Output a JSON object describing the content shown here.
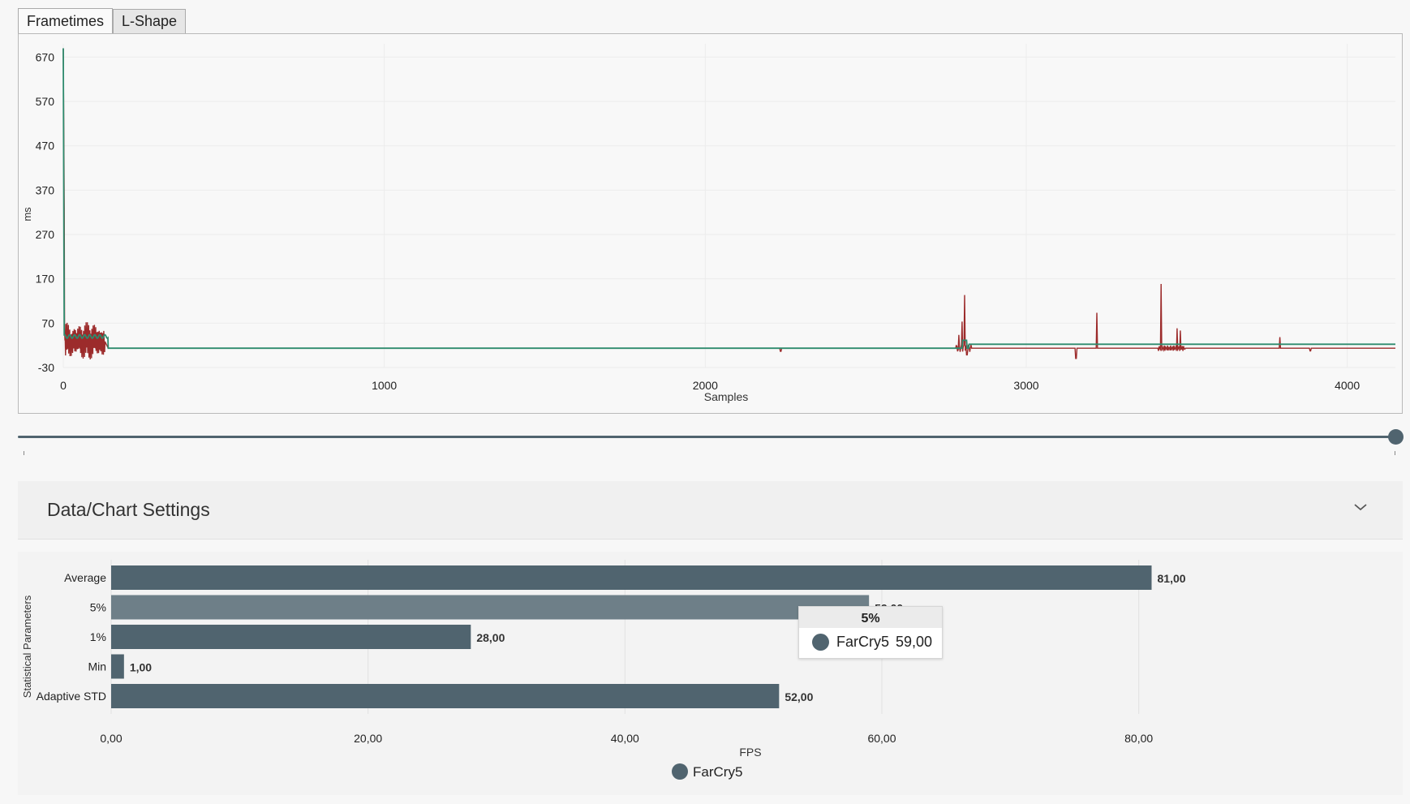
{
  "tabs": [
    {
      "label": "Frametimes",
      "active": true
    },
    {
      "label": "L-Shape",
      "active": false
    }
  ],
  "frametimes_chart": {
    "ylabel": "ms",
    "xlabel": "Samples",
    "ylim": [
      -30,
      700
    ],
    "xlim": [
      0,
      4150
    ],
    "y_ticks": [
      "670",
      "570",
      "470",
      "370",
      "270",
      "170",
      "70",
      "-30"
    ],
    "x_ticks": [
      "0",
      "1000",
      "2000",
      "3000",
      "4000"
    ],
    "series_colors": {
      "raw": "#9c2b2b",
      "smoothed": "#2e8b6e"
    }
  },
  "settings": {
    "title": "Data/Chart Settings"
  },
  "chart_data": {
    "type": "bar",
    "orientation": "horizontal",
    "categories": [
      "Average",
      "5%",
      "1%",
      "Min",
      "Adaptive STD"
    ],
    "series": [
      {
        "name": "FarCry5",
        "values": [
          81,
          59,
          28,
          1,
          52
        ],
        "value_labels": [
          "81,00",
          "59,00",
          "28,00",
          "1,00",
          "52,00"
        ]
      }
    ],
    "xlabel": "FPS",
    "ylabel": "Statistical Parameters",
    "x_ticks": [
      "0,00",
      "20,00",
      "40,00",
      "60,00",
      "80,00"
    ],
    "xlim": [
      0,
      90
    ],
    "legend": "bottom-center",
    "bar_color": "#50646f",
    "highlight_color": "#6e7f88",
    "highlighted_category": "5%"
  },
  "tooltip": {
    "title": "5%",
    "series": "FarCry5",
    "value": "59,00"
  }
}
